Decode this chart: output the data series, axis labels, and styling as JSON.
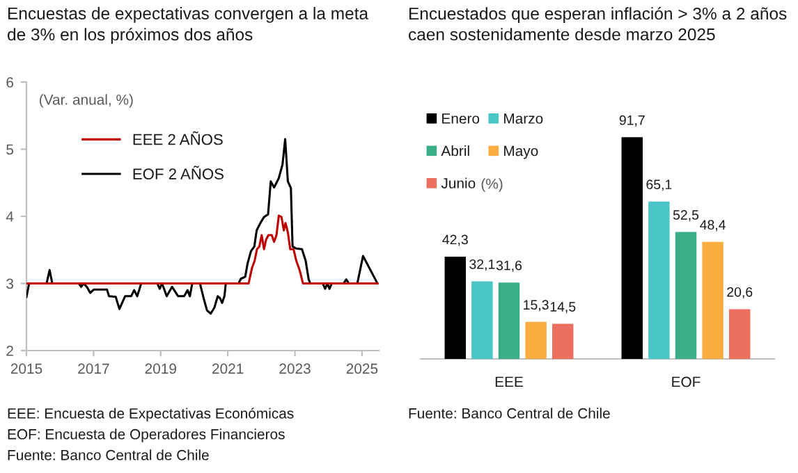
{
  "chart_data": [
    {
      "type": "line",
      "title": "Encuestas de expectativas convergen a la meta\nde 3% en los próximos dos años",
      "annotations": [
        "(Var. anual, %)",
        "EEE: Encuesta de Expectativas Económicas",
        "EOF: Encuesta de Operadores Financieros",
        "Fuente: Banco Central de Chile"
      ],
      "series": [
        {
          "name": "EEE 2 AÑOS",
          "color": "#c00000",
          "x": [
            2015.0,
            2021.62,
            2021.72,
            2021.8,
            2021.87,
            2021.94,
            2022.01,
            2022.08,
            2022.14,
            2022.21,
            2022.31,
            2022.38,
            2022.45,
            2022.52,
            2022.6,
            2022.67,
            2022.72,
            2022.79,
            2022.86,
            2022.96,
            2023.04,
            2023.14,
            2023.24,
            2025.46
          ],
          "values": [
            3.0,
            3.0,
            3.23,
            3.34,
            3.51,
            3.55,
            3.72,
            3.51,
            3.65,
            3.72,
            3.72,
            3.62,
            3.72,
            4.01,
            3.99,
            3.79,
            3.9,
            3.76,
            3.51,
            3.51,
            3.34,
            3.2,
            3.0,
            3.0
          ]
        },
        {
          "name": "EOF 2 AÑOS",
          "color": "#000000",
          "x": [
            2015.0,
            2015.08,
            2015.6,
            2015.69,
            2015.77,
            2016.56,
            2016.63,
            2016.7,
            2016.8,
            2016.9,
            2017.01,
            2017.4,
            2017.46,
            2017.66,
            2017.77,
            2017.94,
            2018.12,
            2018.21,
            2018.3,
            2018.42,
            2018.9,
            2018.97,
            2019.04,
            2019.18,
            2019.34,
            2019.52,
            2019.7,
            2019.8,
            2019.87,
            2019.94,
            2020.17,
            2020.28,
            2020.38,
            2020.49,
            2020.6,
            2020.7,
            2020.77,
            2020.83,
            2020.9,
            2020.94,
            2021.32,
            2021.39,
            2021.52,
            2021.59,
            2021.69,
            2021.79,
            2021.86,
            2021.97,
            2022.08,
            2022.2,
            2022.28,
            2022.38,
            2022.52,
            2022.63,
            2022.71,
            2022.79,
            2022.88,
            2022.93,
            2023.04,
            2023.21,
            2023.32,
            2023.41,
            2023.46,
            2023.83,
            2023.9,
            2023.97,
            2024.03,
            2024.1,
            2024.45,
            2024.53,
            2024.61,
            2024.86,
            2025.03,
            2025.46
          ],
          "values": [
            2.8,
            3.0,
            3.0,
            3.2,
            3.0,
            3.0,
            2.95,
            3.0,
            2.95,
            2.86,
            2.91,
            2.91,
            2.81,
            2.8,
            2.62,
            2.81,
            2.81,
            2.9,
            2.81,
            3.0,
            3.0,
            2.92,
            3.0,
            2.81,
            2.95,
            2.81,
            2.81,
            2.9,
            2.81,
            3.0,
            3.0,
            2.78,
            2.6,
            2.55,
            2.64,
            2.81,
            2.78,
            2.71,
            2.81,
            3.0,
            3.0,
            3.07,
            3.1,
            3.3,
            3.48,
            3.55,
            3.79,
            3.9,
            3.99,
            4.03,
            4.52,
            4.43,
            4.57,
            4.77,
            5.15,
            4.52,
            4.42,
            3.55,
            3.52,
            3.51,
            3.34,
            3.06,
            3.0,
            3.0,
            2.92,
            3.0,
            2.92,
            3.0,
            3.0,
            3.06,
            3.0,
            3.0,
            3.41,
            3.0
          ]
        }
      ],
      "xlim": [
        2015,
        2025.5
      ],
      "ylim": [
        2,
        6
      ],
      "xticks": [
        2015,
        2017,
        2019,
        2021,
        2023,
        2025
      ],
      "yticks": [
        2,
        3,
        4,
        5,
        6
      ],
      "legend": "top left"
    },
    {
      "type": "bar",
      "title": "Encuestados que esperan inflación > 3% a 2 años\ncaen sostenidamente desde marzo 2025",
      "annotations": [
        "(%)",
        "Fuente: Banco Central de Chile"
      ],
      "categories": [
        "EEE",
        "EOF"
      ],
      "series": [
        {
          "name": "Enero",
          "color": "#000000",
          "values": [
            42.3,
            91.7
          ],
          "value_labels": [
            "42,3",
            "91,7"
          ]
        },
        {
          "name": "Marzo",
          "color": "#4bc6c8",
          "values": [
            32.1,
            65.1
          ],
          "value_labels": [
            "32,1",
            "65,1"
          ]
        },
        {
          "name": "Abril",
          "color": "#3aae89",
          "values": [
            31.6,
            52.5
          ],
          "value_labels": [
            "31,6",
            "52,5"
          ]
        },
        {
          "name": "Mayo",
          "color": "#fbad41",
          "values": [
            15.3,
            48.4
          ],
          "value_labels": [
            "15,3",
            "48,4"
          ]
        },
        {
          "name": "Junio",
          "color": "#ec6e5e",
          "values": [
            14.5,
            20.6
          ],
          "value_labels": [
            "14,5",
            "20,6"
          ]
        }
      ],
      "legend": "top left",
      "tick_labels": "x"
    }
  ]
}
